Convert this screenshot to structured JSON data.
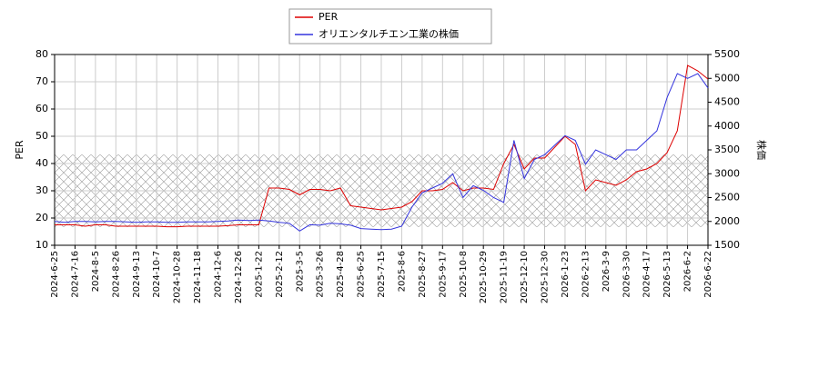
{
  "chart_data": {
    "type": "line",
    "y_label": "PER",
    "y2_label": "株価",
    "categories": [
      "2024-6-25",
      null,
      "2024-7-16",
      null,
      "2024-8-5",
      null,
      "2024-8-26",
      null,
      "2024-9-13",
      null,
      "2024-10-7",
      null,
      "2024-10-28",
      null,
      "2024-11-18",
      null,
      "2024-12-6",
      null,
      "2024-12-26",
      null,
      "2025-1-22",
      null,
      "2025-2-12",
      null,
      "2025-3-5",
      null,
      "2025-3-26",
      null,
      "2025-4-28",
      null,
      "2025-6-25",
      null,
      "2025-7-15",
      null,
      "2025-8-6",
      null,
      "2025-8-27",
      null,
      "2025-9-17",
      null,
      "2025-10-8",
      null,
      "2025-10-29",
      null,
      "2025-11-19",
      null,
      "2025-12-10",
      null,
      "2025-12-30",
      null,
      "2026-1-23",
      null,
      "2026-2-13",
      null,
      "2026-3-9",
      null,
      "2026-3-30",
      null,
      "2026-4-17",
      null,
      "2026-5-13",
      null,
      "2026-6-2",
      null,
      "2026-6-22"
    ],
    "series": [
      {
        "name": "PER",
        "color": "#dd0000",
        "axis": "y",
        "values": [
          17.5,
          17.5,
          17.5,
          17,
          17.5,
          17.5,
          17,
          17,
          17,
          17,
          17,
          16.8,
          16.8,
          17,
          17,
          17,
          17,
          17.2,
          17.5,
          17.5,
          17.5,
          31,
          31,
          30.5,
          28.5,
          30.5,
          30.5,
          30,
          31,
          24.5,
          24,
          23.5,
          23,
          23.5,
          24,
          26,
          30,
          30,
          30.5,
          33,
          30,
          31,
          31,
          30.5,
          40,
          47,
          38,
          42,
          42,
          46,
          50,
          47,
          30,
          34,
          33,
          32,
          34,
          37,
          38,
          40,
          44,
          52,
          76,
          74,
          71
        ]
      },
      {
        "name": "オリエンタルチエン工業の株価",
        "color": "#3333dd",
        "axis": "y2",
        "values": [
          2000,
          1980,
          2000,
          2000,
          1990,
          2000,
          2000,
          1990,
          1980,
          1990,
          1990,
          1980,
          1980,
          1990,
          1990,
          1990,
          2000,
          2010,
          2030,
          2020,
          2030,
          2010,
          1980,
          1960,
          1800,
          1930,
          1920,
          1960,
          1950,
          1920,
          1850,
          1840,
          1830,
          1840,
          1900,
          2300,
          2600,
          2700,
          2800,
          3000,
          2500,
          2750,
          2650,
          2500,
          2400,
          3700,
          2900,
          3300,
          3400,
          3600,
          3800,
          3700,
          3200,
          3500,
          3400,
          3300,
          3500,
          3500,
          3700,
          3900,
          4600,
          5100,
          5000,
          5100,
          4800
        ]
      }
    ],
    "shaded_range": [
      16.7,
      43.3
    ],
    "ylim": [
      10,
      80
    ],
    "yticks": [
      10,
      20,
      30,
      40,
      50,
      60,
      70,
      80
    ],
    "y2lim": [
      1500,
      5500
    ],
    "y2ticks": [
      1500,
      2000,
      2500,
      3000,
      3500,
      4000,
      4500,
      5000,
      5500
    ],
    "grid": true,
    "legend": "top"
  }
}
